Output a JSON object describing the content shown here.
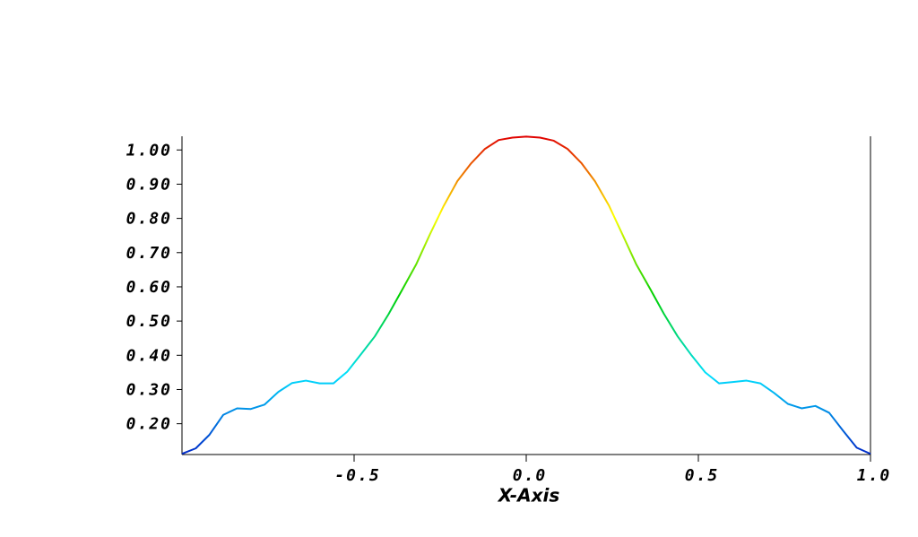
{
  "chart_data": {
    "type": "line",
    "xlabel": "X-Axis",
    "x": [
      -1.0,
      -0.96,
      -0.92,
      -0.88,
      -0.84,
      -0.8,
      -0.76,
      -0.72,
      -0.68,
      -0.64,
      -0.6,
      -0.56,
      -0.52,
      -0.48,
      -0.44,
      -0.4,
      -0.36,
      -0.32,
      -0.28,
      -0.24,
      -0.2,
      -0.16,
      -0.12,
      -0.08,
      -0.04,
      0.0,
      0.04,
      0.08,
      0.12,
      0.16,
      0.2,
      0.24,
      0.28,
      0.32,
      0.36,
      0.4,
      0.44,
      0.48,
      0.52,
      0.56,
      0.6,
      0.64,
      0.68,
      0.72,
      0.76,
      0.8,
      0.84,
      0.88,
      0.92,
      0.96,
      1.0
    ],
    "values": [
      0.112,
      0.128,
      0.168,
      0.226,
      0.245,
      0.243,
      0.256,
      0.293,
      0.319,
      0.326,
      0.318,
      0.318,
      0.352,
      0.403,
      0.455,
      0.52,
      0.592,
      0.665,
      0.753,
      0.836,
      0.909,
      0.961,
      1.003,
      1.029,
      1.036,
      1.039,
      1.036,
      1.027,
      1.003,
      0.962,
      0.908,
      0.838,
      0.752,
      0.665,
      0.594,
      0.521,
      0.455,
      0.4,
      0.35,
      0.318,
      0.322,
      0.326,
      0.318,
      0.29,
      0.258,
      0.245,
      0.252,
      0.232,
      0.18,
      0.13,
      0.112
    ],
    "colormap": [
      "#0028c8",
      "#00e0ff",
      "#00d000",
      "#ffff00",
      "#e00000"
    ],
    "xlim": [
      -1.0,
      1.0
    ],
    "ylim": [
      0.11,
      1.04
    ],
    "xticks": [
      -0.5,
      {
        "value": 0.0,
        "label": "0.0"
      },
      0.5,
      {
        "value": 1.0,
        "label": "1.0"
      }
    ],
    "yticks": [
      {
        "value": 0.2,
        "label": "0.20"
      },
      {
        "value": 0.3,
        "label": "0.30"
      },
      {
        "value": 0.4,
        "label": "0.40"
      },
      {
        "value": 0.5,
        "label": "0.50"
      },
      {
        "value": 0.6,
        "label": "0.60"
      },
      {
        "value": 0.7,
        "label": "0.70"
      },
      {
        "value": 0.8,
        "label": "0.80"
      },
      {
        "value": 0.9,
        "label": "0.90"
      },
      {
        "value": 1.0,
        "label": "1.00"
      }
    ]
  }
}
